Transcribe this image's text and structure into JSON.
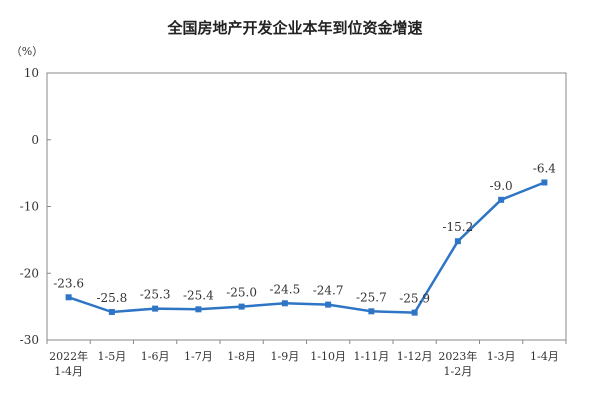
{
  "chart_data": {
    "type": "line",
    "title": "全国房地产开发企业本年到位资金增速",
    "ylabel": "（%）",
    "xlabel": "",
    "ylim": [
      -30,
      10
    ],
    "yticks": [
      10,
      0,
      -10,
      -20,
      -30
    ],
    "grid": false,
    "legend": "none",
    "categories": [
      [
        "2022年",
        "1-4月"
      ],
      [
        "1-5月"
      ],
      [
        "1-6月"
      ],
      [
        "1-7月"
      ],
      [
        "1-8月"
      ],
      [
        "1-9月"
      ],
      [
        "1-10月"
      ],
      [
        "1-11月"
      ],
      [
        "1-12月"
      ],
      [
        "2023年",
        "1-2月"
      ],
      [
        "1-3月"
      ],
      [
        "1-4月"
      ]
    ],
    "series": [
      {
        "values": [
          -23.6,
          -25.8,
          -25.3,
          -25.4,
          -25.0,
          -24.5,
          -24.7,
          -25.7,
          -25.9,
          -15.2,
          -9.0,
          -6.4
        ],
        "labels": [
          "-23.6",
          "-25.8",
          "-25.3",
          "-25.4",
          "-25.0",
          "-24.5",
          "-24.7",
          "-25.7",
          "-25.9",
          "-15.2",
          "-9.0",
          "-6.4"
        ],
        "color": "#2e75c6"
      }
    ]
  },
  "colors": {
    "line": "#2e75c6",
    "axis": "#888888",
    "text": "#333333"
  }
}
